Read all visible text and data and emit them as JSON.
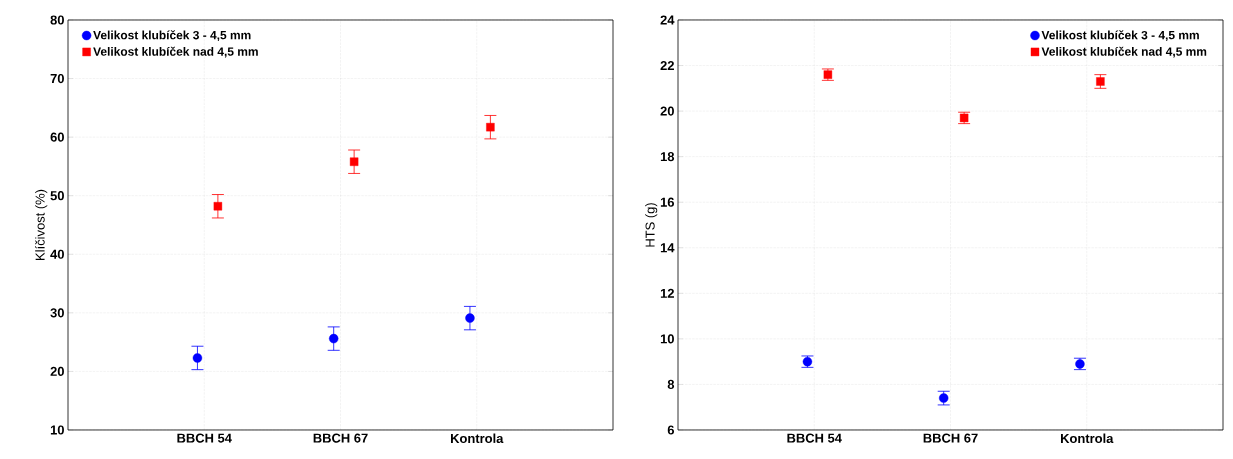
{
  "chart_data": [
    {
      "type": "scatter",
      "ylabel": "Klíčivost (%)",
      "categories": [
        "BBCH 54",
        "BBCH 67",
        "Kontrola"
      ],
      "ylim": [
        10,
        80
      ],
      "yticks": [
        10,
        20,
        30,
        40,
        50,
        60,
        70,
        80
      ],
      "grid": true,
      "legend": "top left",
      "series": [
        {
          "name": "Velikost klubíček 3 - 4,5 mm",
          "color": "#0000ff",
          "marker": "circle",
          "values": [
            22.3,
            25.6,
            29.1
          ],
          "errors": [
            2,
            2,
            2
          ]
        },
        {
          "name": "Velikost klubíček nad 4,5 mm",
          "color": "#ff0000",
          "marker": "square",
          "values": [
            48.2,
            55.8,
            61.7
          ],
          "errors": [
            2,
            2,
            2
          ]
        }
      ]
    },
    {
      "type": "scatter",
      "ylabel": "HTS (g)",
      "categories": [
        "BBCH 54",
        "BBCH 67",
        "Kontrola"
      ],
      "ylim": [
        6,
        24
      ],
      "yticks": [
        6,
        8,
        10,
        12,
        14,
        16,
        18,
        20,
        22,
        24
      ],
      "grid": true,
      "legend": "top right",
      "series": [
        {
          "name": "Velikost klubíček 3 - 4,5 mm",
          "color": "#0000ff",
          "marker": "circle",
          "values": [
            9.0,
            7.4,
            8.9
          ],
          "errors": [
            0.25,
            0.3,
            0.25
          ]
        },
        {
          "name": "Velikost klubíček nad 4,5 mm",
          "color": "#ff0000",
          "marker": "square",
          "values": [
            21.6,
            19.7,
            21.3
          ],
          "errors": [
            0.25,
            0.25,
            0.3
          ]
        }
      ]
    }
  ]
}
